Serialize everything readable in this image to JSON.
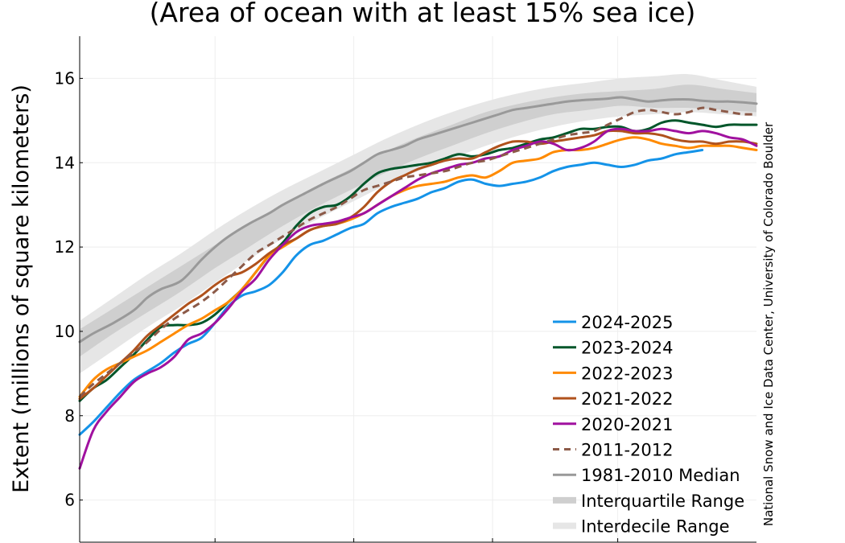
{
  "chart_data": {
    "type": "line",
    "title": "(Area of ocean with at least 15% sea ice)",
    "xlabel": "",
    "ylabel": "Extent (millions of square kilometers)",
    "ylim": [
      5,
      17
    ],
    "xlim": [
      0,
      100
    ],
    "yticks": [
      6,
      8,
      10,
      12,
      14,
      16
    ],
    "xticks": [
      20,
      40.5,
      61,
      79.5
    ],
    "credit": "National Snow and Ice Data Center, University of Colorado Boulder",
    "colors": {
      "interdecile": "#e6e6e6",
      "interquartile": "#cfcfcf",
      "median": "#999999",
      "s2024": "#1493e8",
      "s2023": "#00562a",
      "s2022": "#ff8a00",
      "s2021": "#b0521c",
      "s2020": "#a0119f",
      "s2011": "#8c5a48",
      "grid": "#eeeeee",
      "axis": "#000000"
    },
    "bands": [
      {
        "name": "Interdecile Range",
        "x": [
          0,
          5,
          10,
          15,
          20,
          25,
          30,
          35,
          40,
          45,
          50,
          55,
          60,
          65,
          70,
          75,
          80,
          85,
          90,
          95,
          100
        ],
        "lower": [
          9.0,
          9.55,
          10.1,
          10.6,
          11.15,
          11.7,
          12.2,
          12.65,
          13.05,
          13.45,
          13.8,
          14.1,
          14.4,
          14.65,
          14.85,
          15.0,
          15.1,
          15.15,
          15.2,
          15.15,
          15.1
        ],
        "upper": [
          10.25,
          10.8,
          11.35,
          11.85,
          12.4,
          12.9,
          13.35,
          13.75,
          14.15,
          14.55,
          14.9,
          15.2,
          15.45,
          15.65,
          15.8,
          15.9,
          16.0,
          16.05,
          16.1,
          15.95,
          15.8
        ]
      },
      {
        "name": "Interquartile Range",
        "x": [
          0,
          5,
          10,
          15,
          20,
          25,
          30,
          35,
          40,
          45,
          50,
          55,
          60,
          65,
          70,
          75,
          80,
          85,
          90,
          95,
          100
        ],
        "lower": [
          9.4,
          9.95,
          10.45,
          10.95,
          11.5,
          12.0,
          12.5,
          12.95,
          13.35,
          13.75,
          14.1,
          14.4,
          14.7,
          14.95,
          15.15,
          15.25,
          15.35,
          15.3,
          15.3,
          15.25,
          15.2
        ],
        "upper": [
          10.05,
          10.55,
          11.05,
          11.55,
          12.05,
          12.55,
          13.0,
          13.45,
          13.85,
          14.25,
          14.6,
          14.9,
          15.2,
          15.4,
          15.55,
          15.65,
          15.7,
          15.75,
          15.85,
          15.75,
          15.65
        ]
      }
    ],
    "series": [
      {
        "name": "1981-2010 Median",
        "color_key": "median",
        "dash": false,
        "width": 3,
        "x": [
          0,
          2,
          5,
          8,
          10,
          12,
          15,
          18,
          20,
          22,
          25,
          28,
          30,
          33,
          36,
          38,
          40,
          42,
          44,
          46,
          48,
          50,
          52,
          54,
          56,
          58,
          60,
          62,
          64,
          66,
          68,
          70,
          72,
          74,
          76,
          78,
          80,
          82,
          84,
          86,
          88,
          90,
          92,
          94,
          96,
          98,
          100
        ],
        "y": [
          9.75,
          9.95,
          10.2,
          10.5,
          10.8,
          11.0,
          11.2,
          11.7,
          12.0,
          12.25,
          12.55,
          12.8,
          13.0,
          13.25,
          13.5,
          13.65,
          13.8,
          14.0,
          14.2,
          14.3,
          14.4,
          14.55,
          14.65,
          14.75,
          14.85,
          14.95,
          15.05,
          15.15,
          15.25,
          15.3,
          15.35,
          15.4,
          15.45,
          15.48,
          15.5,
          15.52,
          15.55,
          15.5,
          15.45,
          15.48,
          15.5,
          15.5,
          15.47,
          15.45,
          15.45,
          15.43,
          15.4
        ]
      },
      {
        "name": "2024-2025",
        "color_key": "s2024",
        "dash": false,
        "width": 3,
        "x": [
          0,
          2,
          4,
          6,
          8,
          10,
          12,
          14,
          16,
          18,
          20,
          22,
          24,
          26,
          28,
          30,
          32,
          34,
          36,
          38,
          40,
          42,
          44,
          46,
          48,
          50,
          52,
          54,
          56,
          58,
          60,
          62,
          64,
          66,
          68,
          70,
          72,
          74,
          76,
          78,
          80,
          82,
          84,
          86,
          88,
          90,
          92
        ],
        "y": [
          7.55,
          7.85,
          8.2,
          8.55,
          8.85,
          9.05,
          9.25,
          9.5,
          9.7,
          9.85,
          10.2,
          10.6,
          10.85,
          10.95,
          11.1,
          11.4,
          11.8,
          12.05,
          12.15,
          12.3,
          12.45,
          12.55,
          12.8,
          12.95,
          13.05,
          13.15,
          13.3,
          13.4,
          13.55,
          13.6,
          13.5,
          13.45,
          13.5,
          13.55,
          13.65,
          13.8,
          13.9,
          13.95,
          14.0,
          13.95,
          13.9,
          13.95,
          14.05,
          14.1,
          14.2,
          14.25,
          14.3
        ]
      },
      {
        "name": "2023-2024",
        "color_key": "s2023",
        "dash": false,
        "width": 3,
        "x": [
          0,
          2,
          4,
          6,
          8,
          10,
          12,
          14,
          16,
          18,
          20,
          22,
          24,
          26,
          28,
          30,
          32,
          34,
          36,
          38,
          40,
          42,
          44,
          46,
          48,
          50,
          52,
          54,
          56,
          58,
          60,
          62,
          64,
          66,
          68,
          70,
          72,
          74,
          76,
          78,
          80,
          82,
          84,
          86,
          88,
          90,
          92,
          94,
          96,
          98,
          100
        ],
        "y": [
          8.35,
          8.65,
          8.85,
          9.15,
          9.45,
          9.8,
          10.1,
          10.15,
          10.15,
          10.2,
          10.4,
          10.7,
          11.0,
          11.4,
          11.8,
          12.1,
          12.5,
          12.8,
          12.95,
          13.0,
          13.2,
          13.5,
          13.75,
          13.85,
          13.9,
          13.95,
          14.0,
          14.1,
          14.2,
          14.15,
          14.2,
          14.3,
          14.35,
          14.45,
          14.55,
          14.6,
          14.7,
          14.8,
          14.8,
          14.85,
          14.85,
          14.75,
          14.8,
          14.95,
          15.0,
          14.95,
          14.9,
          14.85,
          14.9,
          14.9,
          14.9
        ]
      },
      {
        "name": "2022-2023",
        "color_key": "s2022",
        "dash": false,
        "width": 3,
        "x": [
          0,
          2,
          4,
          6,
          8,
          10,
          12,
          14,
          16,
          18,
          20,
          22,
          24,
          26,
          28,
          30,
          32,
          34,
          36,
          38,
          40,
          42,
          44,
          46,
          48,
          50,
          52,
          54,
          56,
          58,
          60,
          62,
          64,
          66,
          68,
          70,
          72,
          74,
          76,
          78,
          80,
          82,
          84,
          86,
          88,
          90,
          92,
          94,
          96,
          98,
          100
        ],
        "y": [
          8.45,
          8.85,
          9.1,
          9.25,
          9.4,
          9.55,
          9.75,
          9.95,
          10.15,
          10.3,
          10.5,
          10.7,
          11.0,
          11.4,
          11.8,
          12.0,
          12.2,
          12.4,
          12.5,
          12.55,
          12.65,
          12.8,
          13.0,
          13.2,
          13.35,
          13.45,
          13.5,
          13.55,
          13.65,
          13.7,
          13.65,
          13.8,
          14.0,
          14.05,
          14.1,
          14.25,
          14.3,
          14.3,
          14.35,
          14.45,
          14.55,
          14.6,
          14.55,
          14.45,
          14.4,
          14.35,
          14.4,
          14.4,
          14.4,
          14.35,
          14.3
        ]
      },
      {
        "name": "2021-2022",
        "color_key": "s2021",
        "dash": false,
        "width": 3,
        "x": [
          0,
          2,
          4,
          6,
          8,
          10,
          12,
          14,
          16,
          18,
          20,
          22,
          24,
          26,
          28,
          30,
          32,
          34,
          36,
          38,
          40,
          42,
          44,
          46,
          48,
          50,
          52,
          54,
          56,
          58,
          60,
          62,
          64,
          66,
          68,
          70,
          72,
          74,
          76,
          78,
          80,
          82,
          84,
          86,
          88,
          90,
          92,
          94,
          96,
          98,
          100
        ],
        "y": [
          8.4,
          8.65,
          8.95,
          9.25,
          9.55,
          9.9,
          10.15,
          10.4,
          10.65,
          10.85,
          11.1,
          11.3,
          11.4,
          11.6,
          11.85,
          12.05,
          12.2,
          12.4,
          12.5,
          12.55,
          12.7,
          12.95,
          13.3,
          13.55,
          13.7,
          13.85,
          13.95,
          14.05,
          14.1,
          14.1,
          14.25,
          14.4,
          14.5,
          14.5,
          14.45,
          14.5,
          14.55,
          14.6,
          14.65,
          14.75,
          14.75,
          14.7,
          14.7,
          14.65,
          14.55,
          14.5,
          14.5,
          14.45,
          14.5,
          14.5,
          14.45
        ]
      },
      {
        "name": "2020-2021",
        "color_key": "s2020",
        "dash": false,
        "width": 3,
        "x": [
          0,
          2,
          4,
          6,
          8,
          10,
          12,
          14,
          16,
          18,
          20,
          22,
          24,
          26,
          28,
          30,
          32,
          34,
          36,
          38,
          40,
          42,
          44,
          46,
          48,
          50,
          52,
          54,
          56,
          58,
          60,
          62,
          64,
          66,
          68,
          70,
          72,
          74,
          76,
          78,
          80,
          82,
          84,
          86,
          88,
          90,
          92,
          94,
          96,
          98,
          100
        ],
        "y": [
          6.75,
          7.65,
          8.1,
          8.45,
          8.8,
          9.0,
          9.15,
          9.4,
          9.8,
          9.95,
          10.2,
          10.55,
          10.95,
          11.25,
          11.7,
          12.05,
          12.35,
          12.5,
          12.55,
          12.6,
          12.7,
          12.8,
          13.0,
          13.2,
          13.4,
          13.6,
          13.75,
          13.85,
          13.95,
          14.0,
          14.1,
          14.15,
          14.3,
          14.4,
          14.5,
          14.45,
          14.3,
          14.35,
          14.5,
          14.75,
          14.8,
          14.75,
          14.75,
          14.8,
          14.75,
          14.7,
          14.75,
          14.7,
          14.6,
          14.55,
          14.4
        ]
      },
      {
        "name": "2011-2012",
        "color_key": "s2011",
        "dash": true,
        "width": 3,
        "x": [
          0,
          2,
          4,
          6,
          8,
          10,
          12,
          14,
          16,
          18,
          20,
          22,
          24,
          26,
          28,
          30,
          32,
          34,
          36,
          38,
          40,
          42,
          44,
          46,
          48,
          50,
          52,
          54,
          56,
          58,
          60,
          62,
          64,
          66,
          68,
          70,
          72,
          74,
          76,
          78,
          80,
          82,
          84,
          86,
          88,
          90,
          92,
          94,
          96,
          98,
          100
        ],
        "y": [
          8.45,
          8.75,
          9.0,
          9.25,
          9.5,
          9.75,
          10.05,
          10.3,
          10.5,
          10.7,
          10.95,
          11.25,
          11.55,
          11.85,
          12.05,
          12.25,
          12.45,
          12.65,
          12.8,
          12.95,
          13.15,
          13.35,
          13.45,
          13.55,
          13.65,
          13.7,
          13.75,
          13.8,
          13.9,
          14.0,
          14.05,
          14.15,
          14.25,
          14.35,
          14.45,
          14.55,
          14.65,
          14.7,
          14.75,
          14.9,
          15.05,
          15.2,
          15.25,
          15.2,
          15.15,
          15.2,
          15.3,
          15.25,
          15.2,
          15.15,
          15.15
        ]
      }
    ],
    "legend": {
      "position": "lower-right",
      "entries": [
        {
          "label": "2024-2025",
          "color_key": "s2024",
          "kind": "line"
        },
        {
          "label": "2023-2024",
          "color_key": "s2023",
          "kind": "line"
        },
        {
          "label": "2022-2023",
          "color_key": "s2022",
          "kind": "line"
        },
        {
          "label": "2021-2022",
          "color_key": "s2021",
          "kind": "line"
        },
        {
          "label": "2020-2021",
          "color_key": "s2020",
          "kind": "line"
        },
        {
          "label": "2011-2012",
          "color_key": "s2011",
          "kind": "dashed"
        },
        {
          "label": "1981-2010 Median",
          "color_key": "median",
          "kind": "line"
        },
        {
          "label": "Interquartile Range",
          "color_key": "interquartile",
          "kind": "band"
        },
        {
          "label": "Interdecile Range",
          "color_key": "interdecile",
          "kind": "band"
        }
      ]
    }
  }
}
